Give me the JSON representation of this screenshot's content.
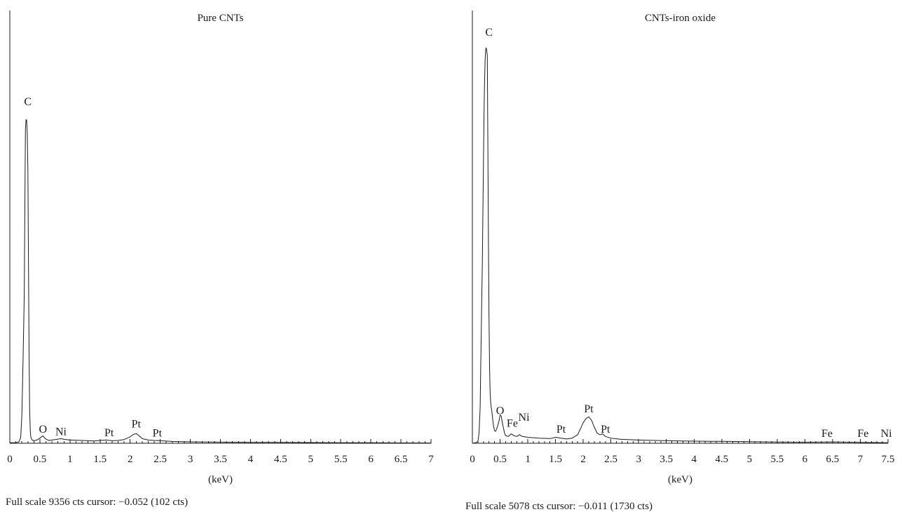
{
  "chart_data": [
    {
      "type": "line",
      "title": "Pure CNTs",
      "xlabel": "(keV)",
      "footer": "Full scale 9356 cts cursor: −0.052 (102 cts)",
      "xlim": [
        0,
        7
      ],
      "ylim": [
        0,
        9356
      ],
      "x_ticks": [
        "0",
        "0.5",
        "1",
        "1.5",
        "2",
        "2.5",
        "3",
        "3.5",
        "4",
        "4.5",
        "5",
        "5.5",
        "6",
        "6.5",
        "7"
      ],
      "peak_labels": [
        {
          "text": "C",
          "x": 0.3,
          "y": 7250
        },
        {
          "text": "O",
          "x": 0.55,
          "y": 170
        },
        {
          "text": "Ni",
          "x": 0.85,
          "y": 110
        },
        {
          "text": "Pt",
          "x": 1.65,
          "y": 90
        },
        {
          "text": "Pt",
          "x": 2.1,
          "y": 280
        },
        {
          "text": "Pt",
          "x": 2.45,
          "y": 80
        }
      ],
      "series": [
        {
          "x": [
            0,
            0.1,
            0.15,
            0.18,
            0.2,
            0.22,
            0.24,
            0.25,
            0.26,
            0.27,
            0.28,
            0.29,
            0.3,
            0.31,
            0.32,
            0.33,
            0.34,
            0.35,
            0.37,
            0.4,
            0.45,
            0.5,
            0.55,
            0.6,
            0.65,
            0.7,
            0.8,
            0.85,
            0.9,
            1.0,
            1.2,
            1.4,
            1.5,
            1.6,
            1.7,
            1.8,
            1.9,
            2.0,
            2.05,
            2.1,
            2.15,
            2.2,
            2.3,
            2.4,
            2.5,
            2.7,
            3.0,
            3.5,
            4.0,
            4.5,
            5.0,
            5.5,
            6.0,
            6.5,
            7.0
          ],
          "y": [
            10,
            10,
            30,
            120,
            600,
            1800,
            3200,
            5200,
            6800,
            7000,
            6980,
            6700,
            5900,
            4000,
            1900,
            700,
            280,
            130,
            70,
            55,
            70,
            110,
            160,
            90,
            60,
            70,
            90,
            100,
            85,
            70,
            60,
            50,
            60,
            70,
            55,
            60,
            80,
            140,
            190,
            210,
            160,
            100,
            70,
            60,
            55,
            40,
            30,
            25,
            20,
            18,
            15,
            12,
            10,
            8,
            6
          ]
        }
      ]
    },
    {
      "type": "line",
      "title": "CNTs-iron oxide",
      "xlabel": "(keV)",
      "footer": "Full scale 5078 cts cursor: −0.011 (1730 cts)",
      "xlim": [
        0,
        7.5
      ],
      "ylim": [
        0,
        5078
      ],
      "x_ticks": [
        "0",
        "0.5",
        "1",
        "1.5",
        "2",
        "2.5",
        "3",
        "3.5",
        "4",
        "4.5",
        "5",
        "5.5",
        "6",
        "6.5",
        "7",
        "7.5"
      ],
      "peak_labels": [
        {
          "text": "C",
          "x": 0.3,
          "y": 4750
        },
        {
          "text": "O",
          "x": 0.5,
          "y": 310
        },
        {
          "text": "Fe",
          "x": 0.72,
          "y": 160
        },
        {
          "text": "Ni",
          "x": 0.93,
          "y": 230
        },
        {
          "text": "Pt",
          "x": 1.6,
          "y": 90
        },
        {
          "text": "Pt",
          "x": 2.1,
          "y": 330
        },
        {
          "text": "Pt",
          "x": 2.4,
          "y": 90
        },
        {
          "text": "Fe",
          "x": 6.4,
          "y": 40
        },
        {
          "text": "Fe",
          "x": 7.05,
          "y": 40
        },
        {
          "text": "Ni",
          "x": 7.47,
          "y": 40
        }
      ],
      "series": [
        {
          "x": [
            0,
            0.05,
            0.1,
            0.12,
            0.14,
            0.15,
            0.16,
            0.17,
            0.18,
            0.19,
            0.2,
            0.21,
            0.22,
            0.23,
            0.24,
            0.25,
            0.26,
            0.27,
            0.28,
            0.29,
            0.3,
            0.31,
            0.32,
            0.33,
            0.34,
            0.35,
            0.36,
            0.38,
            0.4,
            0.42,
            0.45,
            0.48,
            0.5,
            0.52,
            0.55,
            0.58,
            0.6,
            0.65,
            0.7,
            0.75,
            0.8,
            0.85,
            0.9,
            1.0,
            1.2,
            1.4,
            1.5,
            1.6,
            1.7,
            1.8,
            1.9,
            1.95,
            2.0,
            2.05,
            2.1,
            2.15,
            2.2,
            2.25,
            2.3,
            2.35,
            2.4,
            2.5,
            2.7,
            3.0,
            3.5,
            4.0,
            4.5,
            5.0,
            5.5,
            6.0,
            6.4,
            6.5,
            7.0,
            7.5
          ],
          "y": [
            0,
            5,
            20,
            120,
            420,
            900,
            1300,
            1700,
            2100,
            2700,
            3300,
            3850,
            4250,
            4500,
            4620,
            4640,
            4600,
            4550,
            3500,
            2400,
            1500,
            900,
            600,
            480,
            420,
            380,
            320,
            210,
            150,
            140,
            190,
            260,
            330,
            320,
            210,
            120,
            90,
            80,
            110,
            90,
            80,
            100,
            80,
            70,
            60,
            55,
            70,
            60,
            50,
            60,
            100,
            170,
            240,
            290,
            310,
            270,
            190,
            120,
            100,
            110,
            80,
            60,
            45,
            38,
            30,
            25,
            22,
            18,
            15,
            12,
            14,
            16,
            10,
            6
          ]
        }
      ]
    }
  ]
}
